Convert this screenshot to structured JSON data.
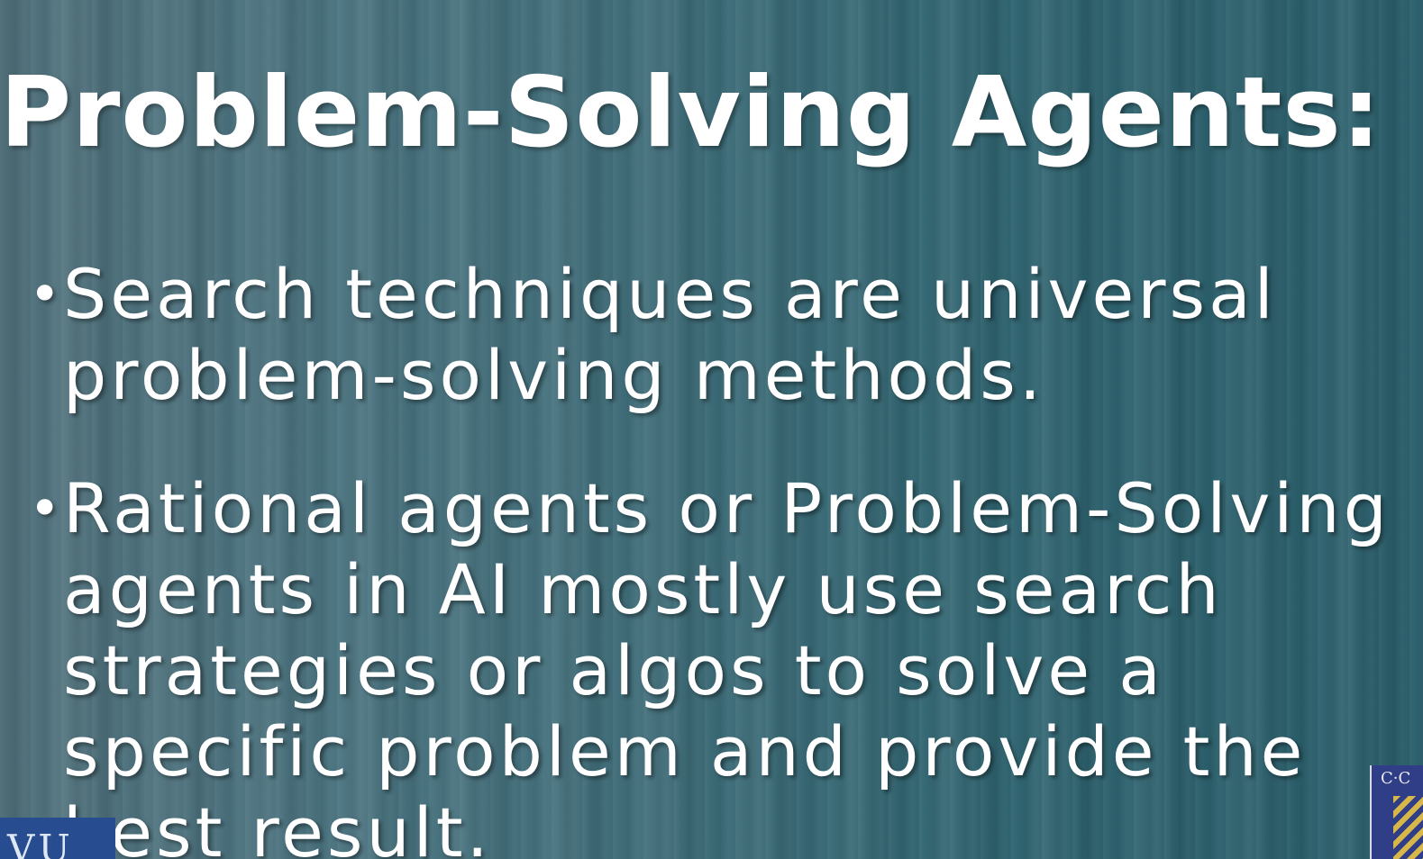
{
  "slide": {
    "title": "Problem-Solving Agents:",
    "bullets": [
      "Search techniques are universal problem-solving methods.",
      "Rational agents or Problem-Solving agents in AI mostly use search strategies or algos to solve a specific problem and provide the best result."
    ],
    "bullet_symbol": "•"
  },
  "logos": {
    "left_text": "VU",
    "right_text": "C·C"
  },
  "colors": {
    "background": "#3f6c78",
    "text": "#ffffff",
    "left_logo": "#274c8f",
    "right_logo": "#2f3e86",
    "shield_accent": "#d7b64a"
  }
}
